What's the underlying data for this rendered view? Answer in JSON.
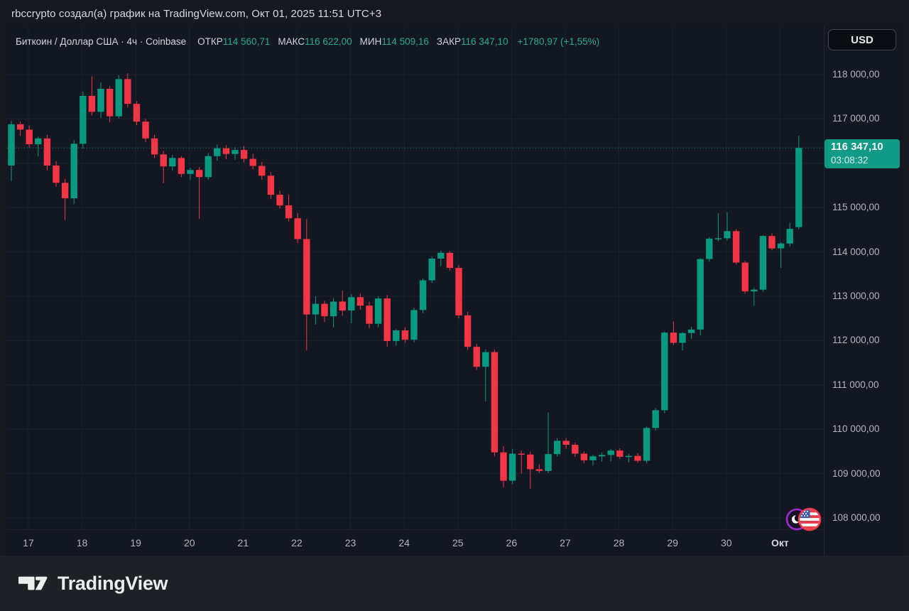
{
  "header": {
    "attribution": "rbccrypto создал(а) график на TradingView.com, Окт 01, 2025 11:51 UTC+3"
  },
  "chart": {
    "currency_button": "USD",
    "legend": {
      "symbol": "Биткоин / Доллар США · 4ч · Coinbase",
      "ohlc": [
        {
          "label": "ОТКР",
          "value": "114 560,71"
        },
        {
          "label": "МАКС",
          "value": "116 622,00"
        },
        {
          "label": "МИН",
          "value": "114 509,16"
        },
        {
          "label": "ЗАКР",
          "value": "116 347,10"
        }
      ],
      "change": "+1780,97 (+1,55%)"
    },
    "price_label": {
      "price": "116 347,10",
      "countdown": "03:08:32"
    }
  },
  "footer": {
    "brand": "TradingView"
  },
  "icons": {
    "pair_left": "btc-icon",
    "pair_right": "us-flag-icon",
    "brand": "tradingview-logo"
  },
  "colors": {
    "up": "#089981",
    "down": "#f23645",
    "background": "#131722",
    "page": "#17181d",
    "footer_bg": "#1e2126",
    "grid": "#1d2231",
    "axis_text": "#b2b5be",
    "price_line": "#119a85",
    "price_flag_bg": "#119a85",
    "legend_value": "#22ab94"
  },
  "chart_data": {
    "type": "candlestick",
    "title": "Биткоин / Доллар США · 4ч · Coinbase",
    "symbol": "Биткоин / Доллар США",
    "interval": "4ч",
    "exchange": "Coinbase",
    "grid": true,
    "legend_position": "top-left",
    "last_price": 116347.1,
    "last_candle": {
      "open": 114560.71,
      "high": 116622.0,
      "low": 114509.16,
      "close": 116347.1,
      "change": 1780.97,
      "change_pct": 1.55
    },
    "y_axis": {
      "min": 107744,
      "max": 119074,
      "tick_values": [
        118000,
        117000,
        116000,
        115000,
        114000,
        113000,
        112000,
        111000,
        110000,
        109000,
        108000
      ],
      "tick_labels": [
        "118 000,00",
        "117 000,00",
        "116 000,00",
        "115 000,00",
        "114 000,00",
        "113 000,00",
        "112 000,00",
        "111 000,00",
        "110 000,00",
        "109 000,00",
        "108 000,00"
      ]
    },
    "x_axis": {
      "tick_labels": [
        "17",
        "18",
        "19",
        "20",
        "21",
        "22",
        "23",
        "24",
        "25",
        "26",
        "27",
        "28",
        "29",
        "30",
        "Окт"
      ],
      "month_tick": "Окт"
    },
    "candles": [
      [
        115950,
        116960,
        115600,
        116880
      ],
      [
        116880,
        116940,
        116620,
        116760
      ],
      [
        116760,
        116850,
        116360,
        116430
      ],
      [
        116430,
        116610,
        116150,
        116560
      ],
      [
        116560,
        116640,
        115840,
        115950
      ],
      [
        115950,
        116050,
        115470,
        115560
      ],
      [
        115560,
        115650,
        114720,
        115210
      ],
      [
        115210,
        116520,
        115080,
        116440
      ],
      [
        116440,
        117620,
        116330,
        117520
      ],
      [
        117520,
        117960,
        117080,
        117160
      ],
      [
        117160,
        117820,
        117020,
        117680
      ],
      [
        117680,
        117740,
        116920,
        117060
      ],
      [
        117060,
        117990,
        117010,
        117900
      ],
      [
        117900,
        118030,
        117260,
        117340
      ],
      [
        117340,
        117400,
        116860,
        116940
      ],
      [
        116940,
        117000,
        116480,
        116560
      ],
      [
        116560,
        116640,
        116120,
        116200
      ],
      [
        116200,
        116280,
        115550,
        115930
      ],
      [
        115930,
        116190,
        115830,
        116120
      ],
      [
        116120,
        116160,
        115690,
        115760
      ],
      [
        115760,
        115900,
        115620,
        115850
      ],
      [
        115850,
        115920,
        114750,
        115690
      ],
      [
        115690,
        116230,
        115630,
        116160
      ],
      [
        116160,
        116420,
        116060,
        116340
      ],
      [
        116340,
        116410,
        116090,
        116210
      ],
      [
        116210,
        116360,
        116080,
        116300
      ],
      [
        116300,
        116390,
        116020,
        116100
      ],
      [
        116100,
        116210,
        115860,
        115940
      ],
      [
        115940,
        116030,
        115630,
        115720
      ],
      [
        115720,
        115800,
        115190,
        115290
      ],
      [
        115290,
        115380,
        114980,
        115050
      ],
      [
        115050,
        115290,
        114690,
        114760
      ],
      [
        114760,
        114880,
        114200,
        114290
      ],
      [
        114290,
        114740,
        111780,
        112590
      ],
      [
        112590,
        113000,
        112360,
        112830
      ],
      [
        112830,
        112900,
        112420,
        112550
      ],
      [
        112550,
        112960,
        112300,
        112880
      ],
      [
        112880,
        113130,
        112560,
        112680
      ],
      [
        112680,
        113050,
        112390,
        112980
      ],
      [
        112980,
        113060,
        112700,
        112790
      ],
      [
        112790,
        112880,
        112280,
        112380
      ],
      [
        112380,
        113000,
        112300,
        112950
      ],
      [
        112950,
        113030,
        111860,
        111990
      ],
      [
        111990,
        112260,
        111890,
        112230
      ],
      [
        112230,
        112300,
        111950,
        112020
      ],
      [
        112020,
        112740,
        111960,
        112690
      ],
      [
        112690,
        113400,
        112620,
        113360
      ],
      [
        113360,
        113900,
        113300,
        113850
      ],
      [
        113850,
        114030,
        113680,
        113980
      ],
      [
        113980,
        114020,
        113580,
        113640
      ],
      [
        113640,
        113700,
        112500,
        112570
      ],
      [
        112570,
        112650,
        111790,
        111860
      ],
      [
        111860,
        111930,
        111340,
        111410
      ],
      [
        111410,
        111800,
        110630,
        111740
      ],
      [
        111740,
        111800,
        109390,
        109480
      ],
      [
        109480,
        109620,
        108690,
        108840
      ],
      [
        108840,
        109560,
        108760,
        109450
      ],
      [
        109450,
        109520,
        109000,
        109430
      ],
      [
        109430,
        109500,
        108660,
        109100
      ],
      [
        109100,
        109210,
        109020,
        109060
      ],
      [
        109060,
        110380,
        109010,
        109440
      ],
      [
        109440,
        109800,
        109380,
        109740
      ],
      [
        109740,
        109800,
        109560,
        109650
      ],
      [
        109650,
        109700,
        109380,
        109450
      ],
      [
        109450,
        109500,
        109230,
        109300
      ],
      [
        109300,
        109420,
        109180,
        109390
      ],
      [
        109390,
        109480,
        109270,
        109420
      ],
      [
        109420,
        109560,
        109280,
        109520
      ],
      [
        109520,
        109570,
        109330,
        109380
      ],
      [
        109380,
        109450,
        109250,
        109400
      ],
      [
        109400,
        109460,
        109240,
        109290
      ],
      [
        109290,
        110060,
        109230,
        110030
      ],
      [
        110030,
        110480,
        109980,
        110430
      ],
      [
        110430,
        112200,
        110360,
        112180
      ],
      [
        112180,
        112430,
        111900,
        111950
      ],
      [
        111950,
        112190,
        111780,
        112170
      ],
      [
        112170,
        112310,
        112040,
        112250
      ],
      [
        112250,
        113860,
        112120,
        113840
      ],
      [
        113840,
        114340,
        113780,
        114300
      ],
      [
        114300,
        114870,
        114240,
        114310
      ],
      [
        114310,
        114900,
        114260,
        114470
      ],
      [
        114470,
        114520,
        113720,
        113760
      ],
      [
        113760,
        113800,
        113060,
        113110
      ],
      [
        113110,
        113190,
        112790,
        113150
      ],
      [
        113150,
        114380,
        113100,
        114360
      ],
      [
        114360,
        114420,
        114040,
        114080
      ],
      [
        114080,
        114220,
        113640,
        114190
      ],
      [
        114190,
        114660,
        114120,
        114520
      ],
      [
        114560.71,
        116622,
        114509.16,
        116347.1
      ]
    ]
  }
}
